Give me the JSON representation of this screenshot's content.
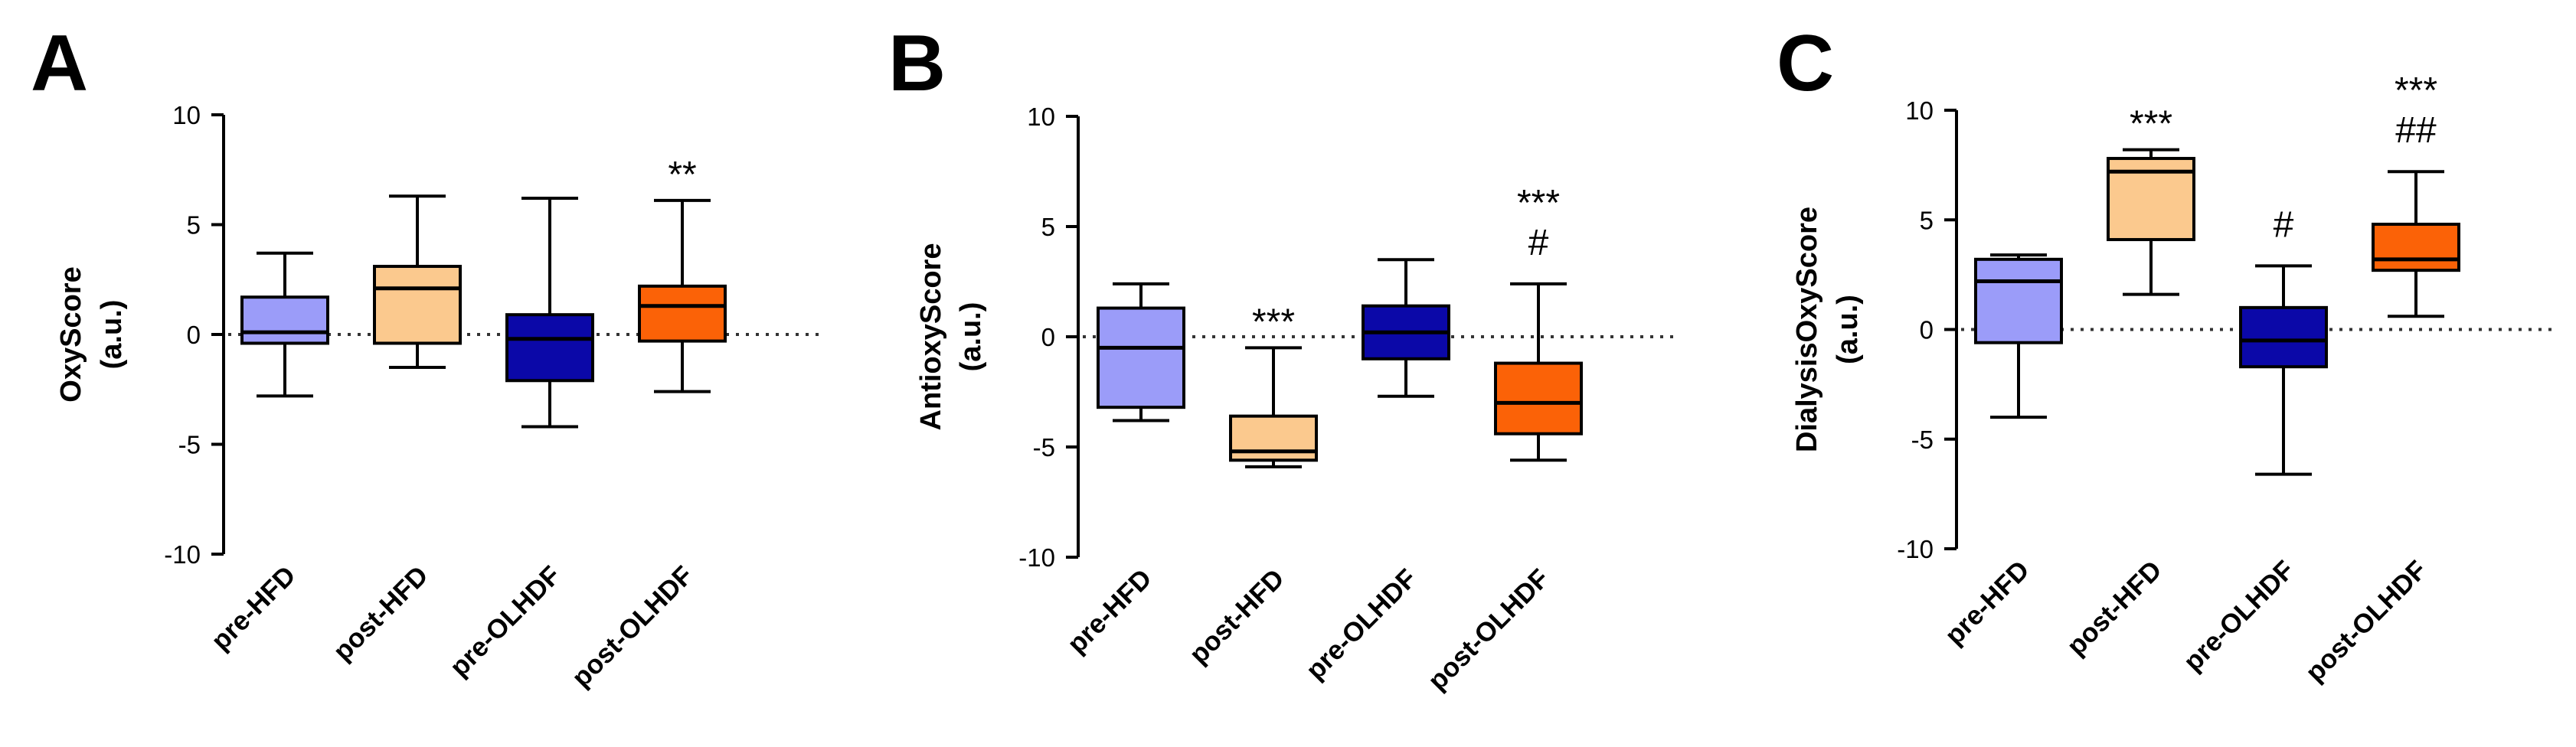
{
  "figure": {
    "description_free": true
  },
  "colors": {
    "pre-HFD": "#9b9cf9",
    "post-HFD": "#fbc98e",
    "pre-OLHDF": "#0b08a8",
    "post-OLHDF": "#fb6207"
  },
  "chart_data": [
    {
      "panel": "A",
      "type": "boxplot",
      "ylabel": [
        "OxyScore",
        "(a.u.)"
      ],
      "ylim": [
        -10,
        10
      ],
      "yticks": [
        10,
        5,
        0,
        -5,
        -10
      ],
      "yticklabels": [
        "10",
        "5",
        "0",
        "-5",
        "-10"
      ],
      "reference_line": 0,
      "categories": [
        "pre-HFD",
        "post-HFD",
        "pre-OLHDF",
        "post-OLHDF"
      ],
      "boxes": [
        {
          "category": "pre-HFD",
          "min": -2.8,
          "q1": -0.4,
          "median": 0.1,
          "q3": 1.7,
          "max": 3.7,
          "annotation": []
        },
        {
          "category": "post-HFD",
          "min": -1.5,
          "q1": -0.4,
          "median": 2.1,
          "q3": 3.1,
          "max": 6.3,
          "annotation": []
        },
        {
          "category": "pre-OLHDF",
          "min": -4.2,
          "q1": -2.1,
          "median": -0.2,
          "q3": 0.9,
          "max": 6.2,
          "annotation": []
        },
        {
          "category": "post-OLHDF",
          "min": -2.6,
          "q1": -0.3,
          "median": 1.3,
          "q3": 2.2,
          "max": 6.1,
          "annotation": [
            "**"
          ]
        }
      ]
    },
    {
      "panel": "B",
      "type": "boxplot",
      "ylabel": [
        "AntioxyScore",
        "(a.u.)"
      ],
      "ylim": [
        -10,
        10
      ],
      "yticks": [
        10,
        5,
        0,
        -5,
        -10
      ],
      "yticklabels": [
        "10",
        "5",
        "0",
        "-5",
        "-10"
      ],
      "reference_line": 0,
      "categories": [
        "pre-HFD",
        "post-HFD",
        "pre-OLHDF",
        "post-OLHDF"
      ],
      "boxes": [
        {
          "category": "pre-HFD",
          "min": -3.8,
          "q1": -3.2,
          "median": -0.5,
          "q3": 1.3,
          "max": 2.4,
          "annotation": []
        },
        {
          "category": "post-HFD",
          "min": -5.9,
          "q1": -5.6,
          "median": -5.2,
          "q3": -3.6,
          "max": -0.5,
          "annotation": [
            "***"
          ]
        },
        {
          "category": "pre-OLHDF",
          "min": -2.7,
          "q1": -1.0,
          "median": 0.2,
          "q3": 1.4,
          "max": 3.5,
          "annotation": []
        },
        {
          "category": "post-OLHDF",
          "min": -5.6,
          "q1": -4.4,
          "median": -3.0,
          "q3": -1.2,
          "max": 2.4,
          "annotation": [
            "#",
            "***"
          ]
        }
      ]
    },
    {
      "panel": "C",
      "type": "boxplot",
      "ylabel": [
        "DialysisOxyScore",
        "(a.u.)"
      ],
      "ylim": [
        -10,
        10
      ],
      "yticks": [
        10,
        5,
        0,
        -5,
        -10
      ],
      "yticklabels": [
        "10",
        "5",
        "0",
        "-5",
        "-10"
      ],
      "reference_line": 0,
      "categories": [
        "pre-HFD",
        "post-HFD",
        "pre-OLHDF",
        "post-OLHDF"
      ],
      "boxes": [
        {
          "category": "pre-HFD",
          "min": -4.0,
          "q1": -0.6,
          "median": 2.2,
          "q3": 3.2,
          "max": 3.4,
          "annotation": []
        },
        {
          "category": "post-HFD",
          "min": 1.6,
          "q1": 4.1,
          "median": 7.2,
          "q3": 7.8,
          "max": 8.2,
          "annotation": [
            "***"
          ]
        },
        {
          "category": "pre-OLHDF",
          "min": -6.6,
          "q1": -1.7,
          "median": -0.5,
          "q3": 1.0,
          "max": 2.9,
          "annotation": [
            "#"
          ]
        },
        {
          "category": "post-OLHDF",
          "min": 0.6,
          "q1": 2.7,
          "median": 3.2,
          "q3": 4.8,
          "max": 7.2,
          "annotation": [
            "##",
            "***"
          ]
        }
      ]
    }
  ]
}
